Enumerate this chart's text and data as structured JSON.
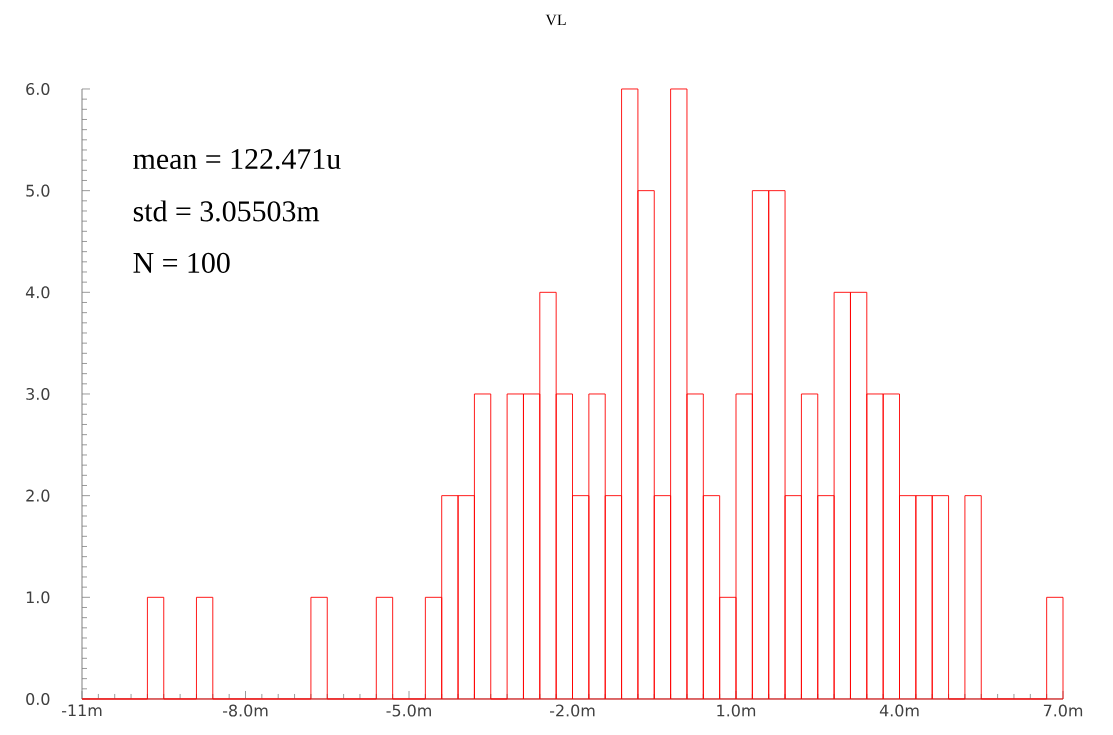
{
  "chart_data": {
    "type": "histogram",
    "title": "VL",
    "bins": [
      -11,
      -10.7,
      -10.4,
      -10.1,
      -9.8,
      -9.5,
      -9.2,
      -8.9,
      -8.6,
      -8.3,
      -8,
      -7.7,
      -7.4,
      -7.1,
      -6.8,
      -6.5,
      -6.2,
      -5.9,
      -5.6,
      -5.3,
      -5,
      -4.7,
      -4.4,
      -4.1,
      -3.8,
      -3.5,
      -3.2,
      -2.9,
      -2.6,
      -2.3,
      -2,
      -1.7,
      -1.4,
      -1.1,
      -0.8,
      -0.5,
      -0.2,
      0.1,
      0.4,
      0.7,
      1,
      1.3,
      1.6,
      1.9,
      2.2,
      2.5,
      2.8,
      3.1,
      3.4,
      3.7,
      4,
      4.3,
      4.6,
      4.9,
      5.2,
      5.5,
      5.8,
      6.1,
      6.4,
      6.7,
      7
    ],
    "values": [
      0,
      0,
      0,
      0,
      1,
      0,
      0,
      1,
      0,
      0,
      0,
      0,
      0,
      0,
      1,
      0,
      0,
      0,
      1,
      0,
      0,
      1,
      2,
      2,
      3,
      0,
      3,
      3,
      4,
      3,
      2,
      3,
      2,
      6,
      5,
      2,
      6,
      3,
      2,
      1,
      3,
      5,
      5,
      2,
      3,
      2,
      4,
      4,
      3,
      3,
      2,
      2,
      2,
      0,
      2,
      0,
      0,
      0,
      0,
      1
    ],
    "color": "#ff0000",
    "xlim": [
      -11,
      7
    ],
    "ylim": [
      0,
      6
    ],
    "xticks": [
      {
        "value": -11,
        "label": "-11m"
      },
      {
        "value": -8,
        "label": "-8.0m"
      },
      {
        "value": -5,
        "label": "-5.0m"
      },
      {
        "value": -2,
        "label": "-2.0m"
      },
      {
        "value": 1,
        "label": "1.0m"
      },
      {
        "value": 4,
        "label": "4.0m"
      },
      {
        "value": 7,
        "label": "7.0m"
      }
    ],
    "yticks": [
      {
        "value": 0,
        "label": "0.0"
      },
      {
        "value": 1,
        "label": "1.0"
      },
      {
        "value": 2,
        "label": "2.0"
      },
      {
        "value": 3,
        "label": "3.0"
      },
      {
        "value": 4,
        "label": "4.0"
      },
      {
        "value": 5,
        "label": "5.0"
      },
      {
        "value": 6,
        "label": "6.0"
      }
    ],
    "annotations": [
      "mean = 122.471u",
      "std = 3.05503m",
      "N = 100"
    ],
    "grid": false
  }
}
